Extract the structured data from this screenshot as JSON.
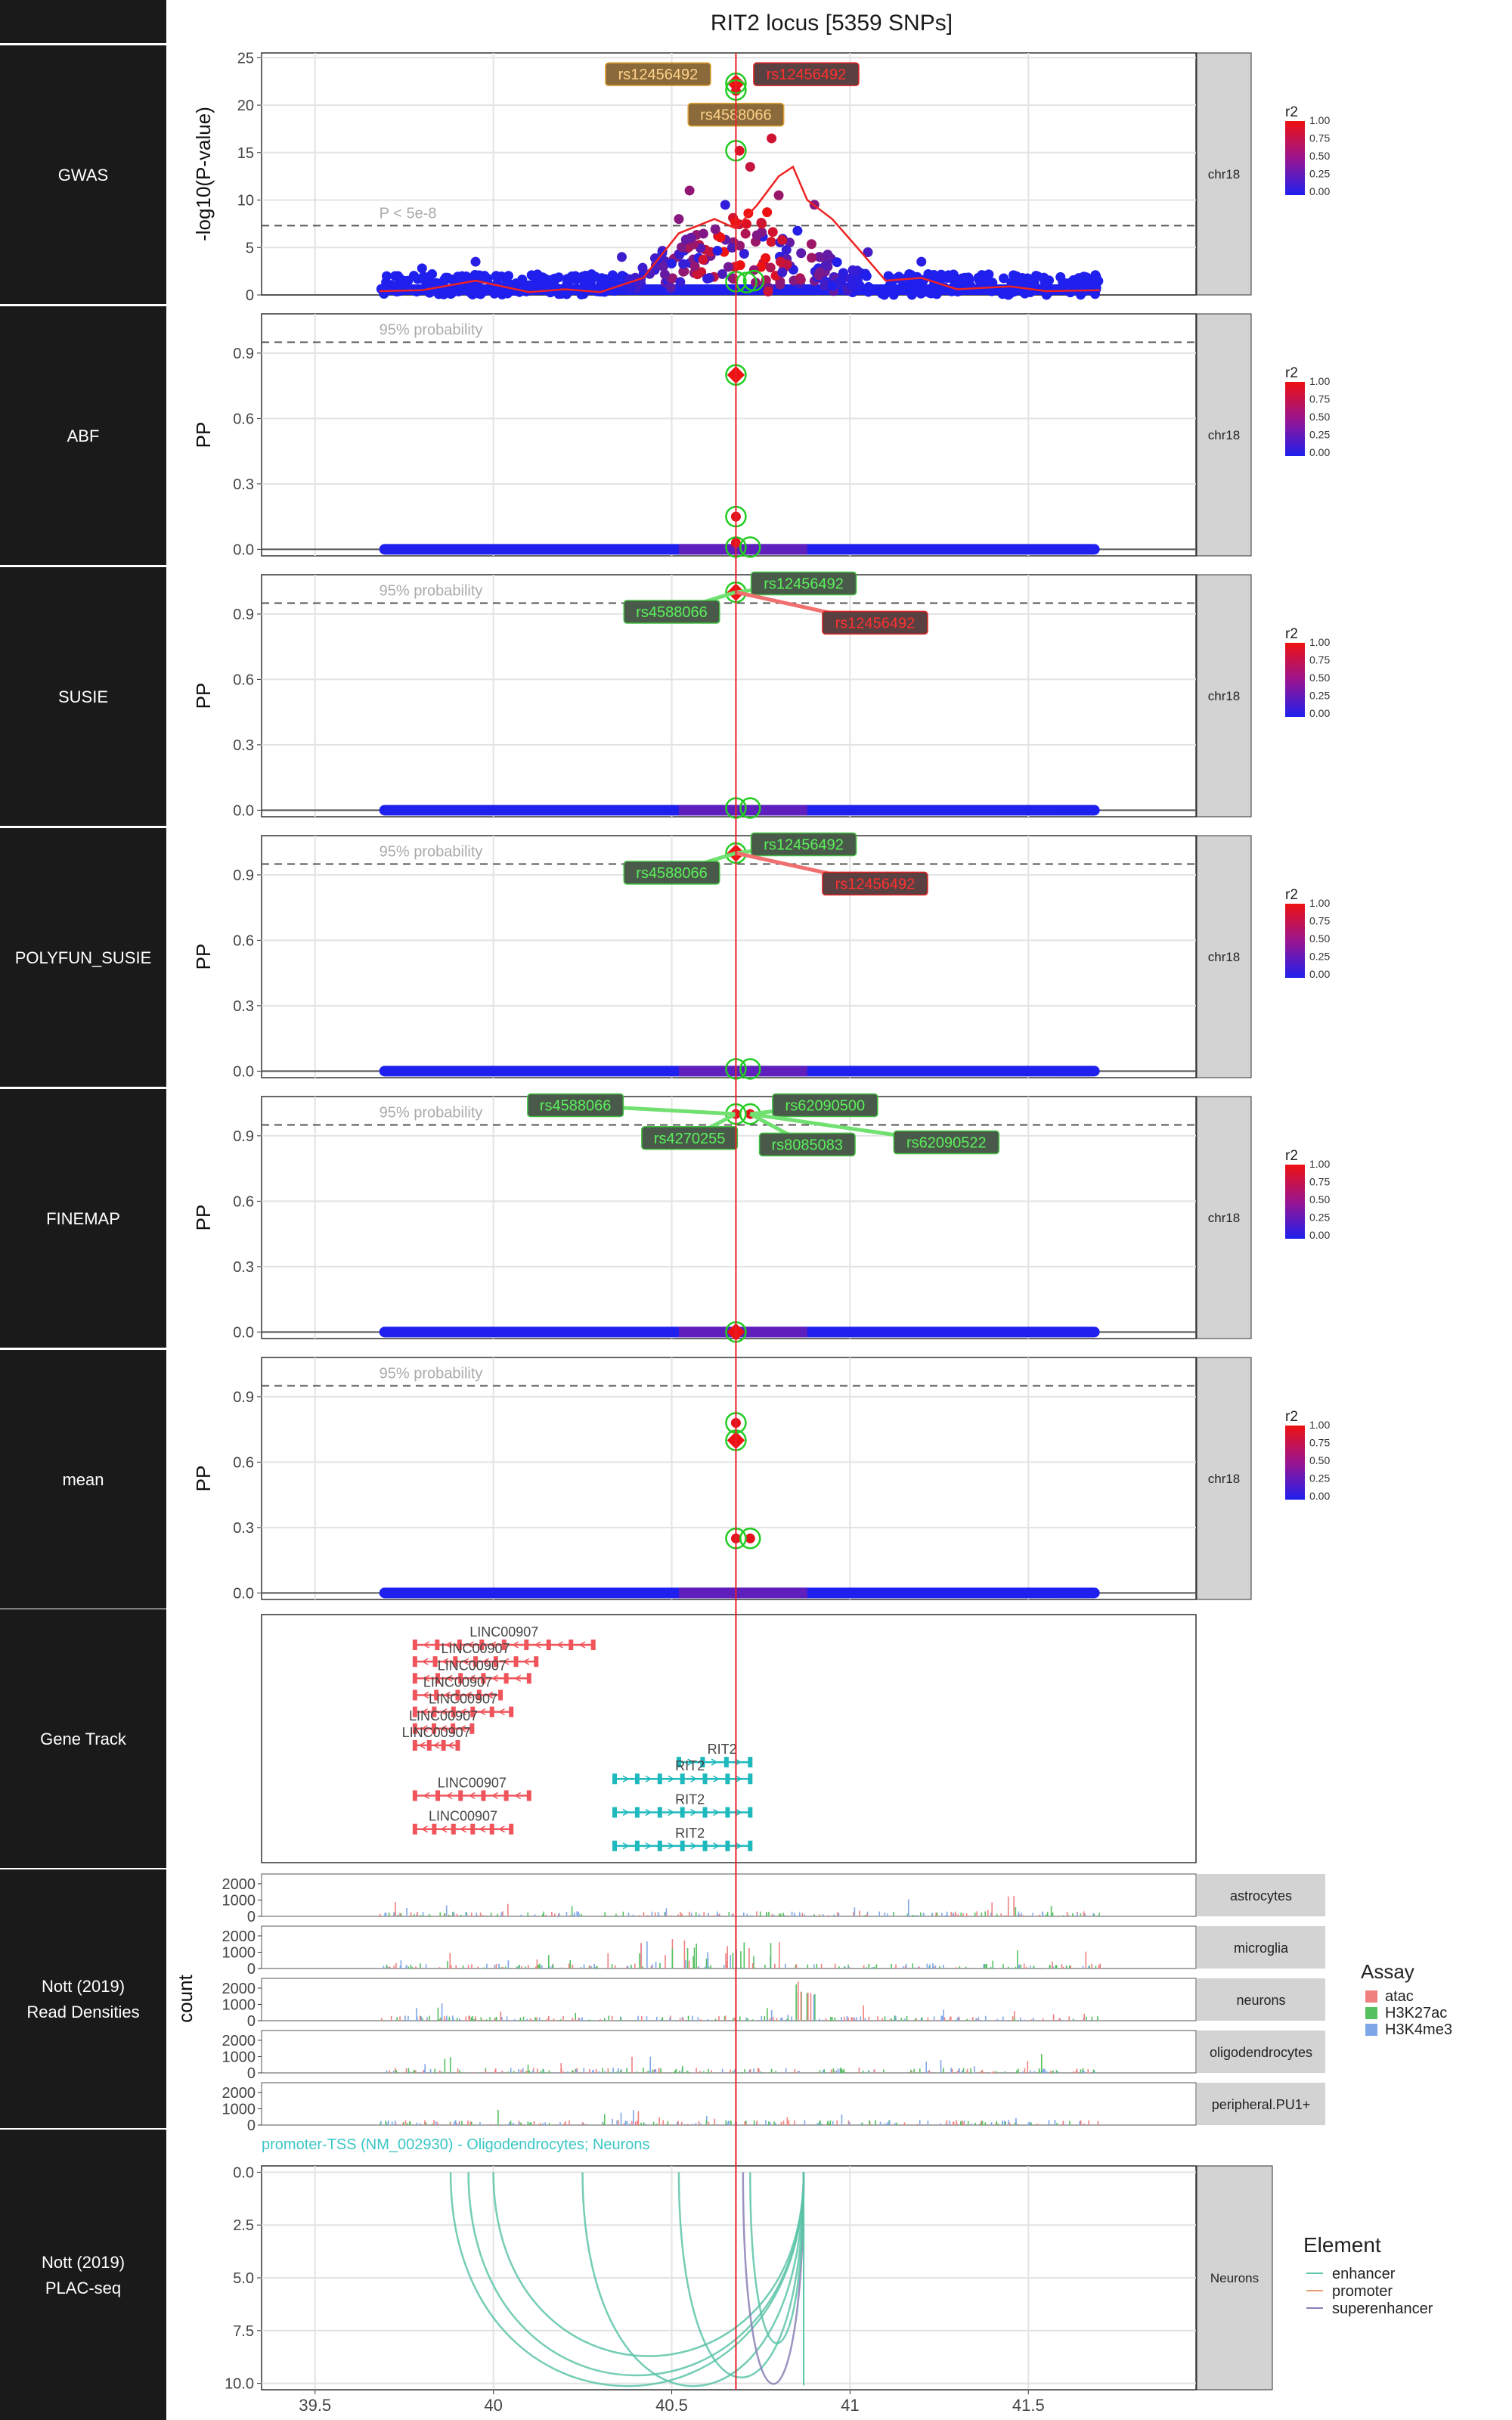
{
  "title": "RIT2 locus [5359 SNPs]",
  "colors": {
    "row_label_bg": "#1a1a1a",
    "strip_bg": "#d3d3d3",
    "lead_line": "#e8212b",
    "snp_low": "#1f1fee",
    "snp_high": "#ee1111",
    "credible_ring": "#22cc22",
    "gene_neg": "#f0545b",
    "gene_pos": "#1eb9bd",
    "label_fill_green": "#4a5a4a",
    "label_fill_orange": "#8a6a3a",
    "arc_enhancer": "#5cc4a8",
    "arc_promoter": "#e6a07a",
    "arc_superenhancer": "#8a7fb5"
  },
  "panel_labels": [
    "GWAS",
    "ABF",
    "SUSIE",
    "POLYFUN_SUSIE",
    "FINEMAP",
    "mean",
    "Gene Track",
    "Nott (2019)\nRead Densities",
    "Nott (2019)\nPLAC-seq"
  ],
  "strip_chrom": "chr18",
  "r2_legend": {
    "title": "r2",
    "ticks": [
      "1.00",
      "0.75",
      "0.50",
      "0.25",
      "0.00"
    ]
  },
  "x_axis": {
    "ticks": [
      "39.5",
      "40",
      "40.5",
      "41",
      "41.5"
    ],
    "range": [
      39.35,
      41.97
    ]
  },
  "lead_snp_pos": 40.68,
  "chart_data": [
    {
      "type": "scatter",
      "panel": "GWAS",
      "ylabel": "-log10(P-value)",
      "ylim": [
        0,
        25.5
      ],
      "yticks": [
        "0",
        "5",
        "10",
        "15",
        "20",
        "25"
      ],
      "threshold": {
        "value": 7.3,
        "label": "P < 5e-8"
      },
      "snp_range": [
        39.68,
        41.7
      ],
      "points_sample": [
        {
          "x": 40.68,
          "y": 22.3,
          "r2": 1.0,
          "lead": true
        },
        {
          "x": 40.68,
          "y": 21.5,
          "r2": 0.95
        },
        {
          "x": 40.69,
          "y": 15.2,
          "r2": 0.9
        },
        {
          "x": 40.78,
          "y": 16.5,
          "r2": 0.85
        },
        {
          "x": 40.72,
          "y": 13.5,
          "r2": 0.8
        },
        {
          "x": 40.8,
          "y": 10.5,
          "r2": 0.6
        },
        {
          "x": 40.55,
          "y": 11.0,
          "r2": 0.55
        },
        {
          "x": 40.9,
          "y": 9.5,
          "r2": 0.5
        },
        {
          "x": 40.52,
          "y": 8.0,
          "r2": 0.5
        },
        {
          "x": 41.05,
          "y": 4.5,
          "r2": 0.2
        },
        {
          "x": 40.36,
          "y": 4.0,
          "r2": 0.15
        },
        {
          "x": 39.95,
          "y": 3.5,
          "r2": 0.05
        },
        {
          "x": 41.2,
          "y": 3.5,
          "r2": 0.05
        },
        {
          "x": 39.8,
          "y": 2.8,
          "r2": 0.02
        }
      ],
      "credible_rings": [
        {
          "x": 40.68,
          "y": 22.3
        },
        {
          "x": 40.68,
          "y": 21.6
        },
        {
          "x": 40.68,
          "y": 15.2
        },
        {
          "x": 40.68,
          "y": 1.4
        },
        {
          "x": 40.73,
          "y": 1.5
        },
        {
          "x": 40.71,
          "y": 1.3
        }
      ],
      "smooth_line": [
        [
          39.68,
          0.4
        ],
        [
          39.8,
          0.5
        ],
        [
          39.95,
          1.5
        ],
        [
          40.1,
          0.3
        ],
        [
          40.2,
          0.6
        ],
        [
          40.3,
          0.3
        ],
        [
          40.42,
          1.8
        ],
        [
          40.52,
          6.5
        ],
        [
          40.62,
          8.0
        ],
        [
          40.68,
          7.0
        ],
        [
          40.74,
          9.5
        ],
        [
          40.8,
          12.5
        ],
        [
          40.84,
          13.5
        ],
        [
          40.88,
          10.0
        ],
        [
          40.95,
          8.0
        ],
        [
          41.02,
          5.0
        ],
        [
          41.1,
          1.5
        ],
        [
          41.2,
          1.8
        ],
        [
          41.3,
          0.6
        ],
        [
          41.45,
          0.9
        ],
        [
          41.55,
          0.4
        ],
        [
          41.7,
          0.5
        ]
      ],
      "labels": [
        {
          "text": "rs12456492",
          "style": "orange",
          "x": 40.68,
          "y": 22.3,
          "side": "left"
        },
        {
          "text": "rs12456492",
          "style": "red",
          "x": 40.68,
          "y": 22.3,
          "side": "right"
        },
        {
          "text": "rs4588066",
          "style": "orange",
          "x": 40.68,
          "y": 19.0,
          "side": "center"
        }
      ]
    },
    {
      "type": "scatter",
      "panel": "ABF",
      "ylabel": "PP",
      "ylim": [
        -0.03,
        1.08
      ],
      "yticks": [
        "0.0",
        "0.3",
        "0.6",
        "0.9"
      ],
      "threshold": {
        "value": 0.95,
        "label": "95% probability"
      },
      "points": [
        {
          "x": 40.68,
          "y": 0.8,
          "lead": true
        },
        {
          "x": 40.68,
          "y": 0.15
        },
        {
          "x": 40.68,
          "y": 0.03
        }
      ],
      "credible_rings": [
        {
          "x": 40.68,
          "y": 0.8
        },
        {
          "x": 40.68,
          "y": 0.15
        },
        {
          "x": 40.68,
          "y": 0.01
        },
        {
          "x": 40.72,
          "y": 0.01
        }
      ],
      "labels": []
    },
    {
      "type": "scatter",
      "panel": "SUSIE",
      "ylabel": "PP",
      "ylim": [
        -0.03,
        1.08
      ],
      "yticks": [
        "0.0",
        "0.3",
        "0.6",
        "0.9"
      ],
      "threshold": {
        "value": 0.95,
        "label": "95% probability"
      },
      "points": [
        {
          "x": 40.68,
          "y": 1.0,
          "lead": true
        }
      ],
      "credible_rings": [
        {
          "x": 40.68,
          "y": 1.0
        },
        {
          "x": 40.68,
          "y": 0.01
        },
        {
          "x": 40.72,
          "y": 0.01
        }
      ],
      "labels": [
        {
          "text": "rs12456492",
          "style": "green",
          "x": 40.68,
          "y": 1.0,
          "lx": 40.87,
          "ly": 1.04
        },
        {
          "text": "rs4588066",
          "style": "green",
          "x": 40.68,
          "y": 1.0,
          "lx": 40.5,
          "ly": 0.91
        },
        {
          "text": "rs12456492",
          "style": "red",
          "x": 40.68,
          "y": 1.0,
          "lx": 41.07,
          "ly": 0.86
        }
      ]
    },
    {
      "type": "scatter",
      "panel": "POLYFUN_SUSIE",
      "ylabel": "PP",
      "ylim": [
        -0.03,
        1.08
      ],
      "yticks": [
        "0.0",
        "0.3",
        "0.6",
        "0.9"
      ],
      "threshold": {
        "value": 0.95,
        "label": "95% probability"
      },
      "points": [
        {
          "x": 40.68,
          "y": 1.0,
          "lead": true
        }
      ],
      "credible_rings": [
        {
          "x": 40.68,
          "y": 1.0
        },
        {
          "x": 40.68,
          "y": 0.01
        },
        {
          "x": 40.72,
          "y": 0.01
        }
      ],
      "labels": [
        {
          "text": "rs12456492",
          "style": "green",
          "x": 40.68,
          "y": 1.0,
          "lx": 40.87,
          "ly": 1.04
        },
        {
          "text": "rs4588066",
          "style": "green",
          "x": 40.68,
          "y": 1.0,
          "lx": 40.5,
          "ly": 0.91
        },
        {
          "text": "rs12456492",
          "style": "red",
          "x": 40.68,
          "y": 1.0,
          "lx": 41.07,
          "ly": 0.86
        }
      ]
    },
    {
      "type": "scatter",
      "panel": "FINEMAP",
      "ylabel": "PP",
      "ylim": [
        -0.03,
        1.08
      ],
      "yticks": [
        "0.0",
        "0.3",
        "0.6",
        "0.9"
      ],
      "threshold": {
        "value": 0.95,
        "label": "95% probability"
      },
      "points": [
        {
          "x": 40.68,
          "y": 0.0,
          "lead": true
        },
        {
          "x": 40.68,
          "y": 1.0
        },
        {
          "x": 40.72,
          "y": 1.0
        }
      ],
      "credible_rings": [
        {
          "x": 40.68,
          "y": 1.0
        },
        {
          "x": 40.72,
          "y": 1.0
        },
        {
          "x": 40.68,
          "y": 0.0
        }
      ],
      "labels": [
        {
          "text": "rs4588066",
          "style": "green",
          "x": 40.68,
          "y": 1.0,
          "lx": 40.23,
          "ly": 1.04
        },
        {
          "text": "rs62090500",
          "style": "green",
          "x": 40.72,
          "y": 1.0,
          "lx": 40.93,
          "ly": 1.04
        },
        {
          "text": "rs4270255",
          "style": "green",
          "x": 40.68,
          "y": 1.0,
          "lx": 40.55,
          "ly": 0.89
        },
        {
          "text": "rs8085083",
          "style": "green",
          "x": 40.72,
          "y": 1.0,
          "lx": 40.88,
          "ly": 0.86
        },
        {
          "text": "rs62090522",
          "style": "green",
          "x": 40.72,
          "y": 1.0,
          "lx": 41.27,
          "ly": 0.87
        }
      ]
    },
    {
      "type": "scatter",
      "panel": "mean",
      "ylabel": "PP",
      "ylim": [
        -0.03,
        1.08
      ],
      "yticks": [
        "0.0",
        "0.3",
        "0.6",
        "0.9"
      ],
      "threshold": {
        "value": 0.95,
        "label": "95% probability"
      },
      "points": [
        {
          "x": 40.68,
          "y": 0.78
        },
        {
          "x": 40.68,
          "y": 0.7,
          "lead": true
        },
        {
          "x": 40.68,
          "y": 0.25
        },
        {
          "x": 40.72,
          "y": 0.25
        }
      ],
      "credible_rings": [
        {
          "x": 40.68,
          "y": 0.78
        },
        {
          "x": 40.68,
          "y": 0.7
        },
        {
          "x": 40.68,
          "y": 0.25
        },
        {
          "x": 40.72,
          "y": 0.25
        }
      ],
      "labels": []
    }
  ],
  "gene_track": {
    "genes": [
      {
        "name": "LINC00907",
        "start": 39.78,
        "end": 40.28,
        "strand": "-"
      },
      {
        "name": "LINC00907",
        "start": 39.78,
        "end": 40.12,
        "strand": "-"
      },
      {
        "name": "LINC00907",
        "start": 39.78,
        "end": 40.1,
        "strand": "-"
      },
      {
        "name": "LINC00907",
        "start": 39.78,
        "end": 40.02,
        "strand": "-"
      },
      {
        "name": "LINC00907",
        "start": 39.78,
        "end": 40.05,
        "strand": "-"
      },
      {
        "name": "LINC00907",
        "start": 39.78,
        "end": 39.94,
        "strand": "-"
      },
      {
        "name": "LINC00907",
        "start": 39.78,
        "end": 39.9,
        "strand": "-"
      },
      {
        "name": "RIT2",
        "start": 40.52,
        "end": 40.72,
        "strand": "+"
      },
      {
        "name": "RIT2",
        "start": 40.34,
        "end": 40.72,
        "strand": "+"
      },
      {
        "name": "LINC00907",
        "start": 39.78,
        "end": 40.1,
        "strand": "-"
      },
      {
        "name": "RIT2",
        "start": 40.34,
        "end": 40.72,
        "strand": "+"
      },
      {
        "name": "LINC00907",
        "start": 39.78,
        "end": 40.05,
        "strand": "-"
      },
      {
        "name": "RIT2",
        "start": 40.34,
        "end": 40.72,
        "strand": "+"
      }
    ]
  },
  "read_densities": {
    "ylabel": "count",
    "yticks": [
      "0",
      "1000",
      "2000"
    ],
    "ymax": 2600,
    "tracks": [
      "astrocytes",
      "microglia",
      "neurons",
      "oligodendrocytes",
      "peripheral.PU1+"
    ],
    "assay_legend": {
      "title": "Assay",
      "items": [
        {
          "name": "atac",
          "color": "#f08080"
        },
        {
          "name": "H3K27ac",
          "color": "#55c060"
        },
        {
          "name": "H3K4me3",
          "color": "#7fa7e8"
        }
      ]
    }
  },
  "plac_seq": {
    "annotation": "promoter-TSS (NM_002930) - Oligodendrocytes; Neurons",
    "strip": "Neurons",
    "yticks": [
      "0.0",
      "2.5",
      "5.0",
      "7.5",
      "10.0"
    ],
    "ylim": [
      -0.3,
      10.3
    ],
    "arcs": [
      {
        "start": 39.88,
        "end": 40.87,
        "depth": 10.0,
        "element": "enhancer"
      },
      {
        "start": 39.93,
        "end": 40.87,
        "depth": 9.5,
        "element": "enhancer"
      },
      {
        "start": 40.0,
        "end": 40.87,
        "depth": 8.6,
        "element": "enhancer"
      },
      {
        "start": 40.25,
        "end": 40.87,
        "depth": 10.0,
        "element": "enhancer"
      },
      {
        "start": 40.52,
        "end": 40.87,
        "depth": 9.6,
        "element": "enhancer"
      },
      {
        "start": 40.7,
        "end": 40.87,
        "depth": 9.9,
        "element": "superenhancer"
      },
      {
        "start": 40.72,
        "end": 40.87,
        "depth": 8.0,
        "element": "enhancer"
      }
    ],
    "element_legend": {
      "title": "Element",
      "items": [
        {
          "name": "enhancer",
          "color": "#5cc4a8"
        },
        {
          "name": "promoter",
          "color": "#e6a07a"
        },
        {
          "name": "superenhancer",
          "color": "#8a7fb5"
        }
      ]
    }
  }
}
